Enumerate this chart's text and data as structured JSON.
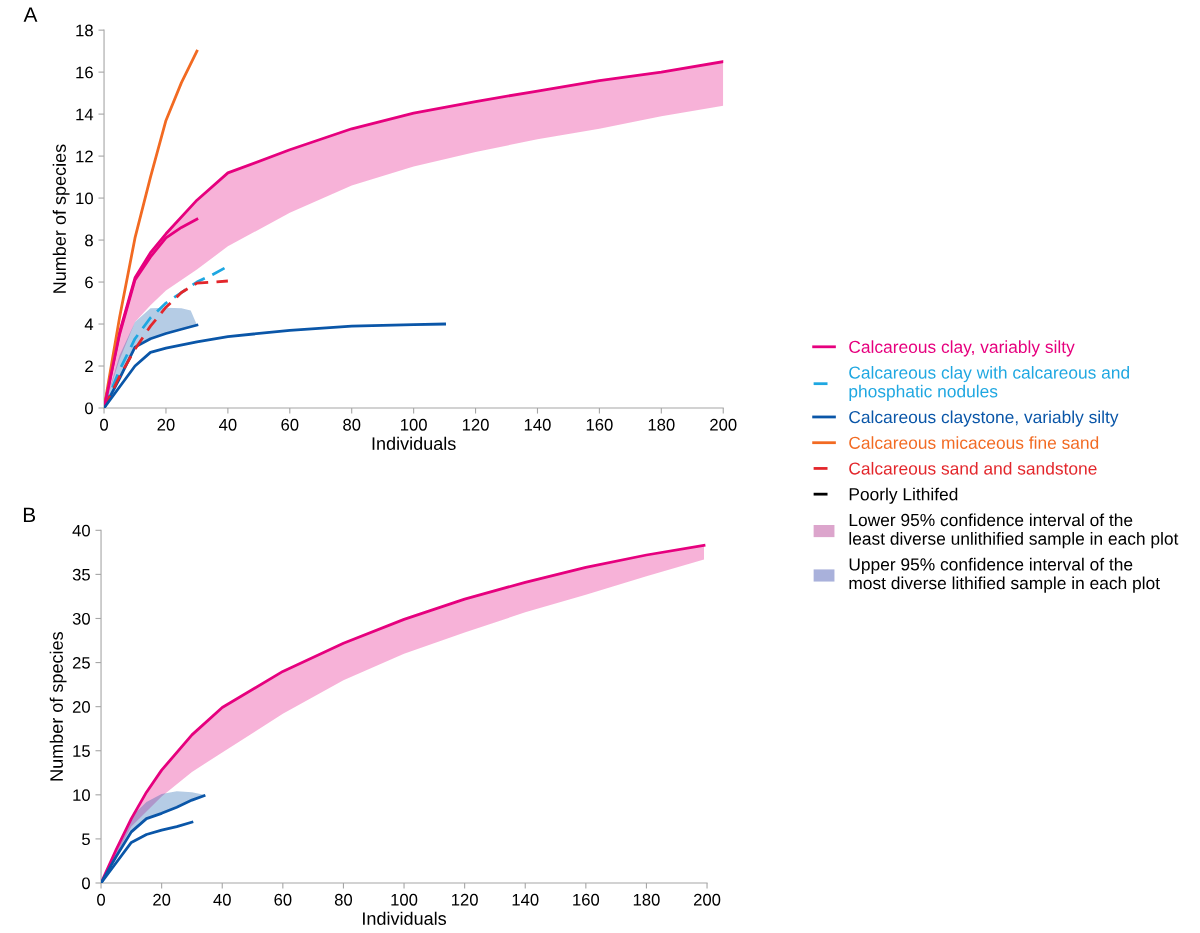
{
  "chart_data": [
    {
      "type": "line",
      "title": "A",
      "xlabel": "Individuals",
      "ylabel": "Number of species",
      "xlim": [
        0,
        200
      ],
      "ylim": [
        0,
        18
      ],
      "xticks": [
        0,
        20,
        40,
        60,
        80,
        100,
        120,
        140,
        160,
        180,
        200
      ],
      "yticks": [
        0,
        2,
        4,
        6,
        8,
        10,
        12,
        14,
        16,
        18
      ],
      "legend": "right",
      "grid": false,
      "series": [
        {
          "name": "Calcareous clay, variably silty",
          "color": "#e6007e",
          "x": [
            0,
            5,
            10,
            15,
            20,
            30,
            40,
            60,
            80,
            100,
            120,
            140,
            160,
            180,
            200
          ],
          "values": [
            0,
            3.6,
            6.2,
            7.4,
            8.3,
            9.9,
            11.2,
            12.3,
            13.3,
            14.05,
            14.6,
            15.1,
            15.6,
            16.0,
            16.5
          ],
          "lower": [
            0,
            2.3,
            4.1,
            4.9,
            5.6,
            6.6,
            7.7,
            9.3,
            10.6,
            11.5,
            12.2,
            12.8,
            13.3,
            13.9,
            14.4
          ],
          "upper": [
            0,
            3.6,
            6.2,
            7.4,
            8.3,
            9.9,
            11.2,
            12.3,
            13.3,
            14.05,
            14.6,
            15.1,
            15.6,
            16.0,
            16.5
          ]
        },
        {
          "name": "Calcareous clay with calcareous and\nphosphatic nodules",
          "color": "#1ea7e1",
          "line_style": "dashed",
          "x": [
            0,
            5,
            10,
            15,
            20,
            25,
            30,
            35,
            40
          ],
          "values": [
            0,
            1.8,
            3.3,
            4.3,
            5.0,
            5.5,
            6.0,
            6.35,
            6.75
          ]
        },
        {
          "name": "Calcareous claystone, variably silty",
          "color": "#0a56a8",
          "x": [
            0,
            5,
            10,
            15,
            20,
            25,
            28,
            30
          ],
          "values": [
            0,
            1.4,
            2.9,
            3.3,
            3.55,
            3.75,
            3.87,
            3.95
          ],
          "lower": [
            0,
            1.4,
            2.9,
            3.3,
            3.55,
            3.75,
            3.87,
            3.95
          ],
          "upper": [
            0,
            2.5,
            4.1,
            4.75,
            4.78,
            4.75,
            4.65,
            3.95
          ]
        },
        {
          "name": "Calcareous micaceous fine sand",
          "color": "#f26a22",
          "x": [
            0,
            5,
            10,
            15,
            20,
            25,
            30
          ],
          "values": [
            0,
            4.3,
            8.1,
            11.0,
            13.7,
            15.5,
            17.0
          ]
        },
        {
          "name": "Calcareous sand and sandstone",
          "color": "#e3262b",
          "line_style": "dashed",
          "x": [
            0,
            5,
            10,
            15,
            20,
            25,
            30,
            35,
            40
          ],
          "values": [
            0,
            1.5,
            2.8,
            3.9,
            4.8,
            5.5,
            5.95,
            6.0,
            6.05
          ]
        },
        {
          "name": "Poorly Lithifed",
          "color": "#000000",
          "line_style": "dashed"
        },
        {
          "type": "area",
          "name": "Lower 95% confidence interval of the\nleast diverse unlithified sample in each plot",
          "color": "#dca5cc"
        },
        {
          "type": "area",
          "name": "Upper 95% confidence interval of the\nmost diverse lithified sample in each plot",
          "color": "#a9b1db"
        },
        {
          "color": "#e6007e",
          "x": [
            0,
            5,
            10,
            15,
            20,
            25,
            30
          ],
          "values": [
            0,
            3.5,
            6.1,
            7.2,
            8.1,
            8.6,
            9.0
          ]
        },
        {
          "color": "#0a56a8",
          "x": [
            0,
            5,
            10,
            15,
            20,
            30,
            40,
            60,
            80,
            100,
            110
          ],
          "values": [
            0,
            1.0,
            2.0,
            2.65,
            2.85,
            3.15,
            3.4,
            3.7,
            3.9,
            3.97,
            4.0
          ]
        }
      ]
    },
    {
      "type": "line",
      "title": "B",
      "xlabel": "Individuals",
      "ylabel": "Number of species",
      "xlim": [
        0,
        200
      ],
      "ylim": [
        0,
        40
      ],
      "xticks": [
        0,
        20,
        40,
        60,
        80,
        100,
        120,
        140,
        160,
        180,
        200
      ],
      "yticks": [
        0,
        5,
        10,
        15,
        20,
        25,
        30,
        35,
        40
      ],
      "grid": false,
      "series": [
        {
          "color": "#e6007e",
          "x": [
            0,
            5,
            10,
            15,
            20,
            30,
            40,
            60,
            80,
            100,
            120,
            140,
            160,
            180,
            199
          ],
          "values": [
            0,
            3.8,
            7.3,
            10.3,
            12.8,
            16.8,
            19.9,
            24.0,
            27.2,
            29.9,
            32.2,
            34.1,
            35.8,
            37.2,
            38.3
          ],
          "lower": [
            0,
            3.2,
            6.4,
            8.1,
            9.8,
            12.6,
            14.8,
            19.2,
            23.0,
            26.0,
            28.4,
            30.7,
            32.7,
            34.8,
            36.7
          ],
          "upper": [
            0,
            3.8,
            7.3,
            10.3,
            12.8,
            16.8,
            19.9,
            24.0,
            27.2,
            29.9,
            32.2,
            34.1,
            35.8,
            37.2,
            38.3
          ]
        },
        {
          "color": "#0a56a8",
          "x": [
            0,
            5,
            10,
            15,
            20,
            25,
            30,
            34
          ],
          "values": [
            0,
            3.0,
            5.8,
            7.3,
            7.9,
            8.6,
            9.4,
            9.9
          ],
          "lower": [
            0,
            3.0,
            5.8,
            7.3,
            7.9,
            8.6,
            9.4,
            9.9
          ],
          "upper": [
            0,
            4.0,
            7.5,
            9.2,
            10.1,
            10.4,
            10.3,
            10.0
          ]
        },
        {
          "color": "#0a56a8",
          "x": [
            0,
            5,
            10,
            15,
            20,
            25,
            30
          ],
          "values": [
            0,
            2.3,
            4.6,
            5.5,
            6.0,
            6.4,
            6.9
          ]
        }
      ]
    }
  ]
}
